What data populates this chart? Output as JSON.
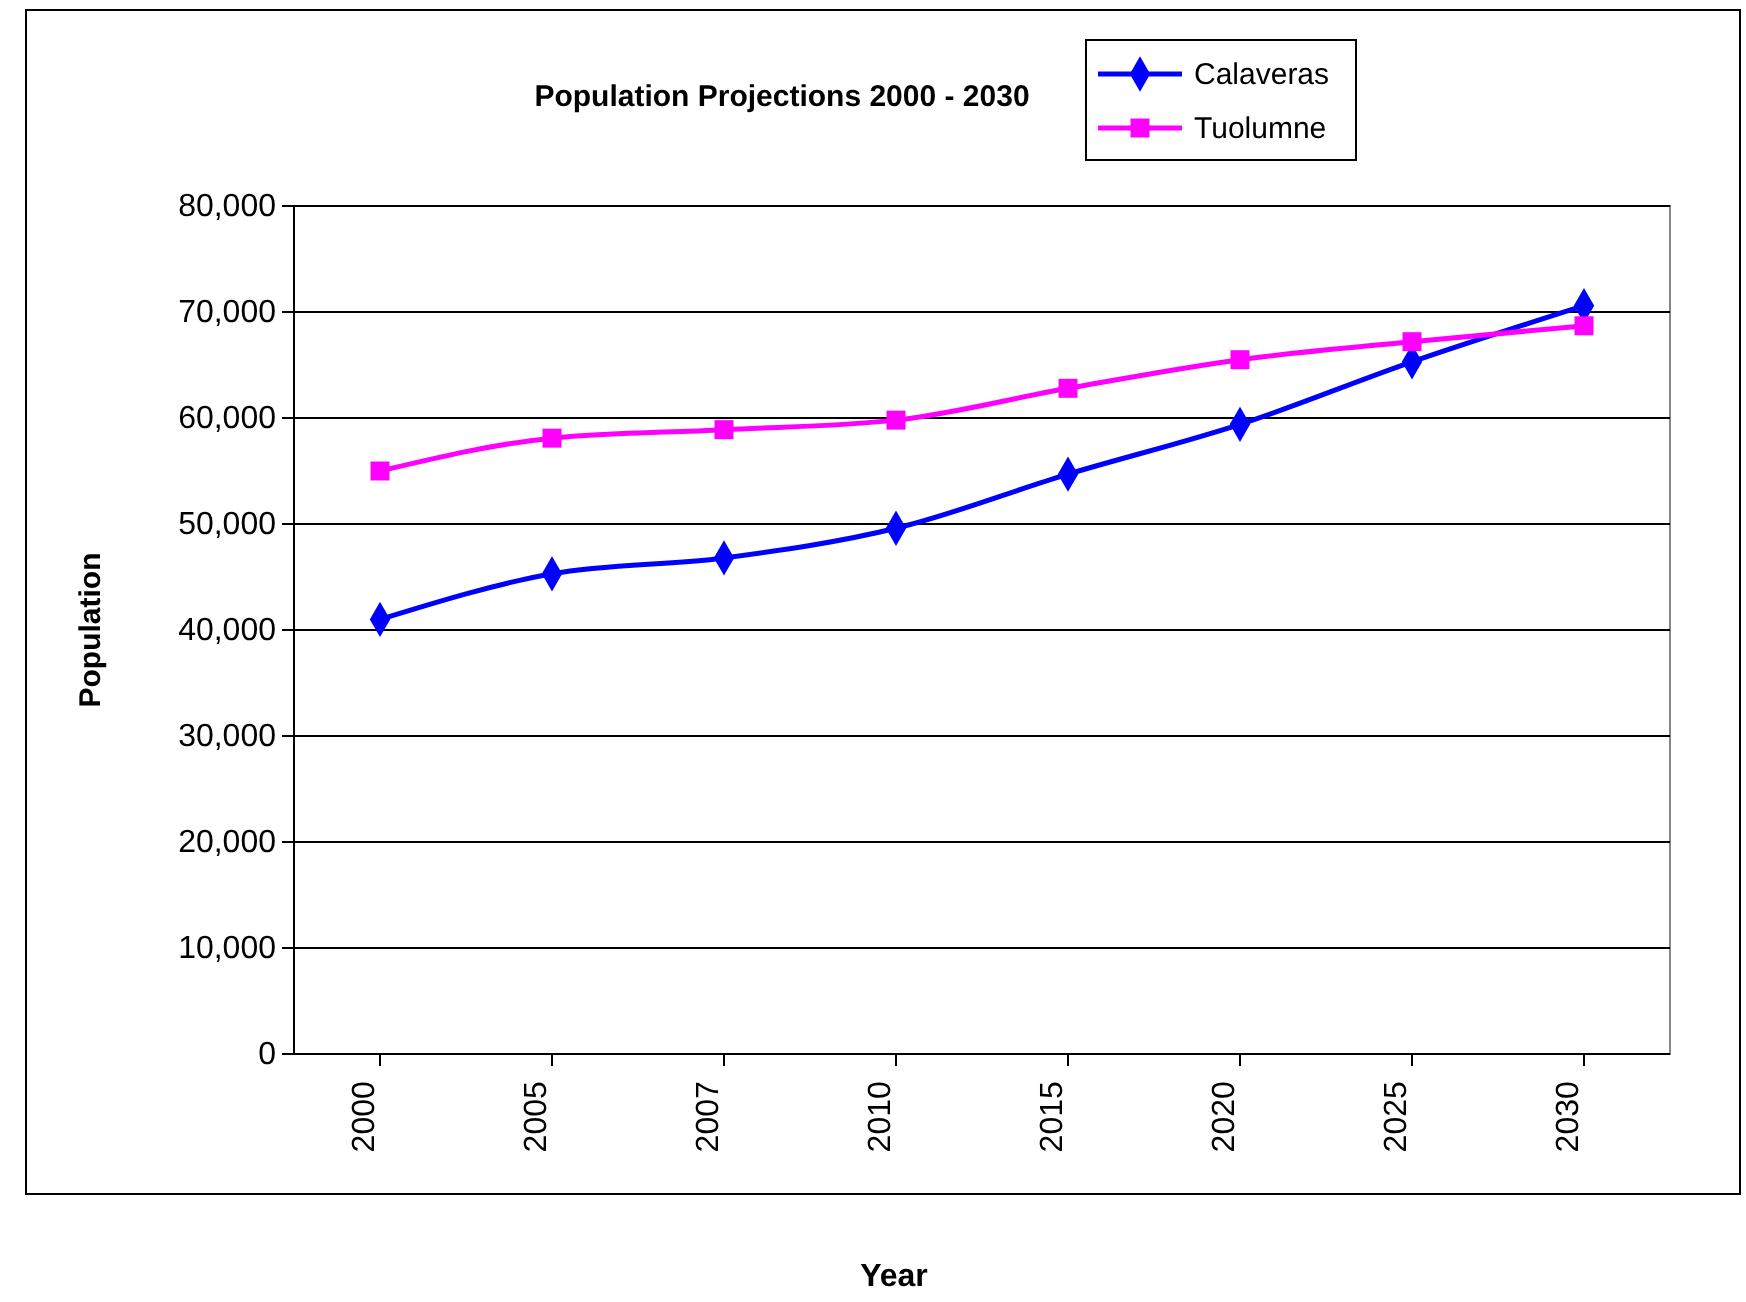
{
  "chart_data": {
    "type": "line",
    "title": "Population Projections 2000 - 2030",
    "xlabel": "Year",
    "ylabel": "Population",
    "categories": [
      "2000",
      "2005",
      "2007",
      "2010",
      "2015",
      "2020",
      "2025",
      "2030"
    ],
    "series": [
      {
        "name": "Calaveras",
        "color": "#0000ff",
        "marker": "diamond",
        "values": [
          41000,
          45300,
          46800,
          49600,
          54700,
          59400,
          65300,
          70600
        ]
      },
      {
        "name": "Tuolumne",
        "color": "#ff00ff",
        "marker": "square",
        "values": [
          55000,
          58100,
          58900,
          59800,
          62800,
          65500,
          67200,
          68700
        ]
      }
    ],
    "ylim": [
      0,
      80000
    ],
    "yticks": [
      {
        "value": 0,
        "label": "0"
      },
      {
        "value": 10000,
        "label": "10,000"
      },
      {
        "value": 20000,
        "label": "20,000"
      },
      {
        "value": 30000,
        "label": "30,000"
      },
      {
        "value": 40000,
        "label": "40,000"
      },
      {
        "value": 50000,
        "label": "50,000"
      },
      {
        "value": 60000,
        "label": "60,000"
      },
      {
        "value": 70000,
        "label": "70,000"
      },
      {
        "value": 80000,
        "label": "80,000"
      }
    ],
    "grid": "y",
    "legend": "top right",
    "line_style": "solid"
  }
}
